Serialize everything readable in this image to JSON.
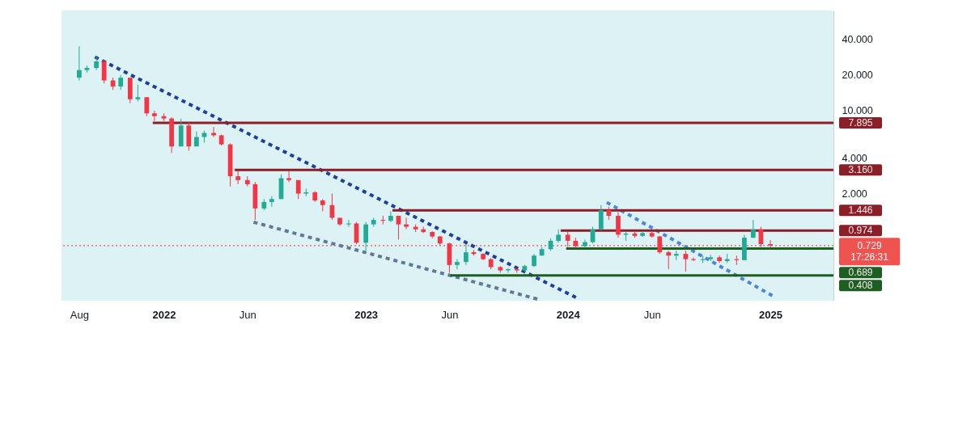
{
  "chart_data": {
    "type": "candlestick",
    "log": true,
    "grid": false,
    "xlim": [
      "2021-06-30",
      "2025-04-25"
    ],
    "xticks": [
      {
        "value": "2021-08-01",
        "label": "Aug"
      },
      {
        "value": "2022-01-01",
        "label": "2022"
      },
      {
        "value": "2022-06-01",
        "label": "Jun"
      },
      {
        "value": "2023-01-01",
        "label": "2023"
      },
      {
        "value": "2023-06-01",
        "label": "Jun"
      },
      {
        "value": "2024-01-01",
        "label": "2024"
      },
      {
        "value": "2024-06-01",
        "label": "Jun"
      },
      {
        "value": "2025-01-01",
        "label": "2025"
      }
    ],
    "ylim": [
      0.25,
      70
    ],
    "yticks": [
      {
        "value": 40,
        "label": "40.000"
      },
      {
        "value": 20,
        "label": "20.000"
      },
      {
        "value": 10,
        "label": "10.000"
      },
      {
        "value": 4,
        "label": "4.000"
      },
      {
        "value": 2,
        "label": "2.000"
      }
    ],
    "x": [
      "2021-08-01",
      "2021-08-15",
      "2021-09-01",
      "2021-09-15",
      "2021-10-01",
      "2021-10-15",
      "2021-11-01",
      "2021-11-15",
      "2021-12-01",
      "2021-12-15",
      "2022-01-01",
      "2022-01-15",
      "2022-02-01",
      "2022-02-15",
      "2022-03-01",
      "2022-03-15",
      "2022-04-01",
      "2022-04-15",
      "2022-05-01",
      "2022-05-15",
      "2022-06-01",
      "2022-06-15",
      "2022-07-01",
      "2022-07-15",
      "2022-08-01",
      "2022-08-15",
      "2022-09-01",
      "2022-09-15",
      "2022-10-01",
      "2022-10-15",
      "2022-11-01",
      "2022-11-15",
      "2022-12-01",
      "2022-12-15",
      "2023-01-01",
      "2023-01-15",
      "2023-02-01",
      "2023-02-15",
      "2023-03-01",
      "2023-03-15",
      "2023-04-01",
      "2023-04-15",
      "2023-05-01",
      "2023-05-15",
      "2023-06-01",
      "2023-06-15",
      "2023-07-01",
      "2023-07-15",
      "2023-08-01",
      "2023-08-15",
      "2023-09-01",
      "2023-09-15",
      "2023-10-01",
      "2023-10-15",
      "2023-11-01",
      "2023-11-15",
      "2023-12-01",
      "2023-12-15",
      "2024-01-01",
      "2024-01-15",
      "2024-02-01",
      "2024-02-15",
      "2024-03-01",
      "2024-03-15",
      "2024-04-01",
      "2024-04-15",
      "2024-05-01",
      "2024-05-15",
      "2024-06-01",
      "2024-06-15",
      "2024-07-01",
      "2024-07-15",
      "2024-08-01",
      "2024-08-15",
      "2024-09-01",
      "2024-09-15",
      "2024-10-01",
      "2024-10-15",
      "2024-11-01",
      "2024-11-15",
      "2024-12-01",
      "2024-12-15",
      "2025-01-01"
    ],
    "ohlc": [
      [
        19,
        35,
        18,
        22
      ],
      [
        22,
        24,
        21,
        23
      ],
      [
        23,
        29,
        22,
        26
      ],
      [
        26,
        27,
        17,
        18
      ],
      [
        18,
        19,
        15,
        16
      ],
      [
        16,
        20,
        15,
        19
      ],
      [
        19,
        19,
        11.6,
        12.5
      ],
      [
        12.5,
        16.6,
        12,
        13
      ],
      [
        13,
        13,
        9,
        9.5
      ],
      [
        9.5,
        10,
        8.2,
        9
      ],
      [
        9,
        9.5,
        8.2,
        8.6
      ],
      [
        8.6,
        8.8,
        4.4,
        5
      ],
      [
        5,
        8.6,
        5,
        7.5
      ],
      [
        7.5,
        8,
        4.6,
        5
      ],
      [
        5,
        6.7,
        5,
        6
      ],
      [
        6,
        6.8,
        5.4,
        6.5
      ],
      [
        6.5,
        7.3,
        6,
        6.2
      ],
      [
        6.2,
        6.3,
        5.1,
        5.2
      ],
      [
        5.2,
        5.3,
        2.3,
        2.8
      ],
      [
        2.8,
        3.1,
        2.4,
        2.6
      ],
      [
        2.6,
        2.8,
        2.3,
        2.4
      ],
      [
        2.4,
        2.5,
        1.2,
        1.5
      ],
      [
        1.5,
        1.8,
        1.45,
        1.7
      ],
      [
        1.7,
        1.9,
        1.55,
        1.8
      ],
      [
        1.8,
        2.9,
        1.8,
        2.7
      ],
      [
        2.7,
        3.1,
        2.5,
        2.6
      ],
      [
        2.6,
        2.6,
        1.8,
        2.0
      ],
      [
        2.0,
        2.2,
        1.9,
        2.05
      ],
      [
        2.05,
        2.1,
        1.7,
        1.75
      ],
      [
        1.75,
        1.8,
        1.42,
        1.6
      ],
      [
        1.6,
        2.0,
        1.2,
        1.25
      ],
      [
        1.25,
        1.25,
        1.07,
        1.1
      ],
      [
        1.1,
        1.2,
        1.05,
        1.12
      ],
      [
        1.12,
        1.15,
        0.75,
        0.77
      ],
      [
        0.77,
        1.15,
        0.66,
        1.1
      ],
      [
        1.1,
        1.25,
        1.05,
        1.2
      ],
      [
        1.2,
        1.3,
        1.1,
        1.18
      ],
      [
        1.18,
        1.42,
        1.15,
        1.3
      ],
      [
        1.3,
        1.3,
        0.82,
        1.1
      ],
      [
        1.1,
        1.25,
        1.0,
        1.05
      ],
      [
        1.05,
        1.1,
        0.95,
        1.0
      ],
      [
        1.0,
        1.05,
        0.93,
        0.95
      ],
      [
        0.95,
        0.96,
        0.84,
        0.87
      ],
      [
        0.87,
        0.88,
        0.73,
        0.76
      ],
      [
        0.76,
        0.77,
        0.43,
        0.5
      ],
      [
        0.5,
        0.56,
        0.46,
        0.53
      ],
      [
        0.53,
        0.75,
        0.5,
        0.64
      ],
      [
        0.64,
        0.67,
        0.6,
        0.62
      ],
      [
        0.62,
        0.63,
        0.55,
        0.56
      ],
      [
        0.56,
        0.57,
        0.46,
        0.48
      ],
      [
        0.48,
        0.49,
        0.43,
        0.45
      ],
      [
        0.45,
        0.47,
        0.43,
        0.46
      ],
      [
        0.46,
        0.47,
        0.43,
        0.45
      ],
      [
        0.45,
        0.5,
        0.44,
        0.49
      ],
      [
        0.49,
        0.62,
        0.48,
        0.6
      ],
      [
        0.6,
        0.71,
        0.6,
        0.68
      ],
      [
        0.68,
        0.84,
        0.66,
        0.8
      ],
      [
        0.8,
        1.0,
        0.77,
        0.9
      ],
      [
        0.9,
        0.95,
        0.71,
        0.8
      ],
      [
        0.8,
        0.85,
        0.7,
        0.72
      ],
      [
        0.72,
        0.82,
        0.7,
        0.78
      ],
      [
        0.78,
        1.05,
        0.76,
        1.0
      ],
      [
        1.0,
        1.6,
        0.98,
        1.45
      ],
      [
        1.45,
        1.55,
        1.2,
        1.3
      ],
      [
        1.3,
        1.4,
        0.85,
        0.9
      ],
      [
        0.9,
        0.95,
        0.8,
        0.92
      ],
      [
        0.92,
        0.95,
        0.85,
        0.88
      ],
      [
        0.88,
        0.96,
        0.86,
        0.93
      ],
      [
        0.93,
        0.96,
        0.85,
        0.87
      ],
      [
        0.87,
        0.88,
        0.62,
        0.64
      ],
      [
        0.64,
        0.66,
        0.46,
        0.6
      ],
      [
        0.6,
        0.66,
        0.55,
        0.62
      ],
      [
        0.62,
        0.66,
        0.44,
        0.56
      ],
      [
        0.56,
        0.58,
        0.54,
        0.55
      ],
      [
        0.55,
        0.6,
        0.52,
        0.56
      ],
      [
        0.56,
        0.61,
        0.54,
        0.58
      ],
      [
        0.58,
        0.6,
        0.52,
        0.54
      ],
      [
        0.54,
        0.62,
        0.52,
        0.56
      ],
      [
        0.56,
        0.6,
        0.5,
        0.55
      ],
      [
        0.55,
        0.9,
        0.55,
        0.85
      ],
      [
        0.85,
        1.2,
        0.84,
        1.0
      ],
      [
        1.0,
        1.05,
        0.71,
        0.75
      ],
      [
        0.75,
        0.81,
        0.7,
        0.73
      ]
    ],
    "colors": [
      "#22ab94",
      "#22ab94",
      "#22ab94",
      "#f23645",
      "#f23645",
      "#22ab94",
      "#f23645",
      "#22ab94",
      "#f23645",
      "#f23645",
      "#f23645",
      "#f23645",
      "#22ab94",
      "#f23645",
      "#22ab94",
      "#22ab94",
      "#f23645",
      "#f23645",
      "#f23645",
      "#f23645",
      "#f23645",
      "#f23645",
      "#22ab94",
      "#22ab94",
      "#22ab94",
      "#f23645",
      "#f23645",
      "#22ab94",
      "#f23645",
      "#f23645",
      "#f23645",
      "#f23645",
      "#22ab94",
      "#f23645",
      "#22ab94",
      "#22ab94",
      "#f23645",
      "#22ab94",
      "#f23645",
      "#f23645",
      "#f23645",
      "#f23645",
      "#f23645",
      "#f23645",
      "#f23645",
      "#22ab94",
      "#22ab94",
      "#f23645",
      "#f23645",
      "#f23645",
      "#f23645",
      "#22ab94",
      "#f23645",
      "#22ab94",
      "#22ab94",
      "#22ab94",
      "#22ab94",
      "#22ab94",
      "#f23645",
      "#f23645",
      "#22ab94",
      "#22ab94",
      "#22ab94",
      "#f23645",
      "#f23645",
      "#22ab94",
      "#f23645",
      "#22ab94",
      "#f23645",
      "#f23645",
      "#f23645",
      "#22ab94",
      "#f23645",
      "#f23645",
      "#22ab94",
      "#22ab94",
      "#f23645",
      "#22ab94",
      "#f23645",
      "#22ab94",
      "#22ab94",
      "#f23645",
      "#f23645"
    ],
    "series": [
      {
        "type": "line",
        "color": "#1f3f9f",
        "line_style": "dotted",
        "x": [
          "2021-09-01",
          "2024-01-13"
        ],
        "values": [
          28,
          0.27
        ]
      },
      {
        "type": "line",
        "color": "#5d7a99",
        "line_style": "dotted",
        "x": [
          "2022-06-15",
          "2023-11-04"
        ],
        "values": [
          1.14,
          0.26
        ]
      },
      {
        "type": "line",
        "color": "#4d86d8",
        "line_style": "dotted",
        "x": [
          "2024-03-14",
          "2025-01-02"
        ],
        "values": [
          1.66,
          0.28
        ]
      },
      {
        "type": "line",
        "color": "#8b1e26",
        "line_style": "solid",
        "x": [
          "2021-12-12",
          "2025-04-25"
        ],
        "values": [
          7.895,
          7.895
        ],
        "value_labels": [
          null,
          "7.895"
        ]
      },
      {
        "type": "line",
        "color": "#8b1e26",
        "line_style": "solid",
        "x": [
          "2022-05-09",
          "2025-04-25"
        ],
        "values": [
          3.16,
          3.16
        ],
        "value_labels": [
          null,
          "3.160"
        ]
      },
      {
        "type": "line",
        "color": "#8b1e26",
        "line_style": "solid",
        "x": [
          "2023-02-18",
          "2025-04-25"
        ],
        "values": [
          1.446,
          1.446
        ],
        "value_labels": [
          null,
          "1.446"
        ]
      },
      {
        "type": "line",
        "color": "#8b1e26",
        "line_style": "solid",
        "x": [
          "2023-12-19",
          "2025-04-25"
        ],
        "values": [
          0.974,
          0.974
        ],
        "value_labels": [
          null,
          "0.974"
        ]
      },
      {
        "type": "line",
        "color": "#1d5e22",
        "line_style": "solid",
        "x": [
          "2023-12-29",
          "2025-04-25"
        ],
        "values": [
          0.689,
          0.689
        ],
        "value_labels": [
          null,
          "0.689"
        ]
      },
      {
        "type": "line",
        "color": "#1d5e22",
        "line_style": "solid",
        "x": [
          "2023-06-03",
          "2025-04-25"
        ],
        "values": [
          0.408,
          0.408
        ],
        "value_labels": [
          null,
          "0.408"
        ]
      }
    ],
    "ref_lines": [
      {
        "axis": "y",
        "value": 0.729,
        "label": "0.729\n17:26:31",
        "color": "#ef5350",
        "line_style": "dotted"
      }
    ]
  }
}
